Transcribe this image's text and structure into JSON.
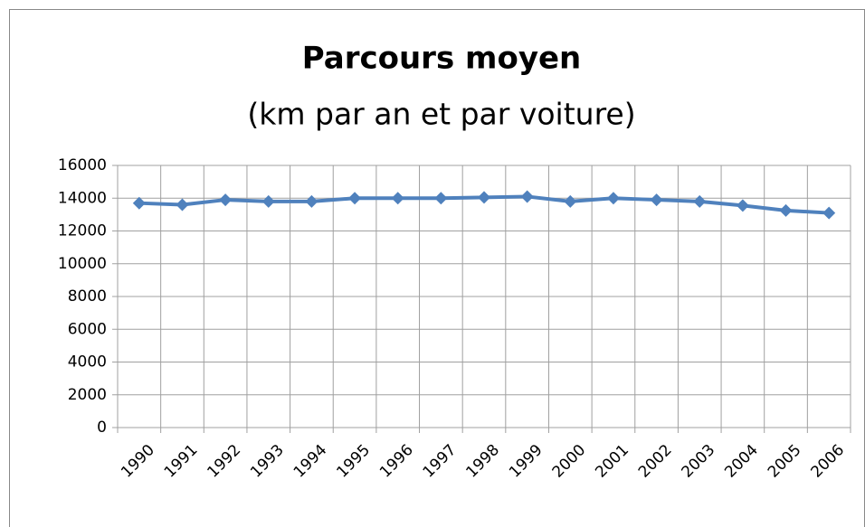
{
  "chart_data": {
    "type": "line",
    "title": "Parcours moyen",
    "subtitle": "(km par an et par voiture)",
    "categories": [
      "1990",
      "1991",
      "1992",
      "1993",
      "1994",
      "1995",
      "1996",
      "1997",
      "1998",
      "1999",
      "2000",
      "2001",
      "2002",
      "2003",
      "2004",
      "2005",
      "2006"
    ],
    "series": [
      {
        "name": "Parcours moyen",
        "color": "#4f81bd",
        "values": [
          13700,
          13600,
          13900,
          13800,
          13800,
          14000,
          14000,
          14000,
          14050,
          14100,
          13800,
          14000,
          13900,
          13800,
          13550,
          13250,
          13100
        ]
      }
    ],
    "ylim": [
      0,
      16000
    ],
    "yticks": [
      0,
      2000,
      4000,
      6000,
      8000,
      10000,
      12000,
      14000,
      16000
    ],
    "grid": true
  }
}
